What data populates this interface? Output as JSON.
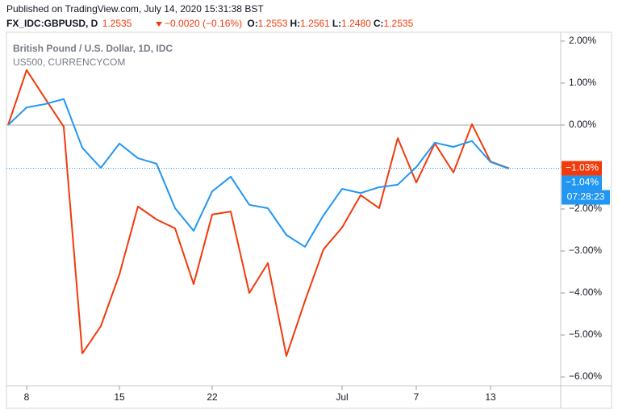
{
  "header": {
    "published": "Published on TradingView.com, July 14, 2020 15:31:38 BST",
    "symbol": "FX_IDC:GBPUSD, D",
    "last": "1.2535",
    "change": "−0.0020 (−0.16%)",
    "ohlc": [
      {
        "key": "O:",
        "value": "1.2553"
      },
      {
        "key": "H:",
        "value": "1.2561"
      },
      {
        "key": "L:",
        "value": "1.2480"
      },
      {
        "key": "C:",
        "value": "1.2535"
      }
    ]
  },
  "chart_data": {
    "type": "line",
    "categories": [
      null,
      "8",
      null,
      null,
      null,
      null,
      "15",
      null,
      null,
      null,
      null,
      "22",
      null,
      null,
      null,
      null,
      null,
      null,
      "Jul",
      null,
      null,
      null,
      "7",
      null,
      null,
      null,
      "13",
      null
    ],
    "series": [
      {
        "name": "British Pound / U.S. Dollar, 1D, IDC",
        "color": "#f23a0c",
        "values": [
          0,
          1.31,
          0.63,
          -0.04,
          -5.44,
          -4.79,
          -3.56,
          -1.94,
          -2.25,
          -2.46,
          -3.79,
          -2.13,
          -2.06,
          -4.0,
          -3.29,
          -5.5,
          -4.19,
          -2.96,
          -2.44,
          -1.67,
          -1.98,
          -0.31,
          -1.37,
          -0.44,
          -1.13,
          0.02,
          -0.87,
          -1.03
        ],
        "value_labels": [
          null,
          null,
          null,
          null,
          null,
          null,
          null,
          null,
          null,
          null,
          null,
          null,
          null,
          null,
          null,
          null,
          null,
          null,
          null,
          null,
          null,
          null,
          null,
          null,
          null,
          null,
          null,
          "−1.03%"
        ]
      },
      {
        "name": "US500, CURRENCYCOM",
        "color": "#2196f3",
        "values": [
          0,
          0.42,
          0.5,
          0.62,
          -0.54,
          -1.02,
          -0.44,
          -0.79,
          -0.92,
          -1.98,
          -2.52,
          -1.58,
          -1.23,
          -1.9,
          -1.98,
          -2.62,
          -2.9,
          -2.15,
          -1.52,
          -1.62,
          -1.48,
          -1.42,
          -1.0,
          -0.42,
          -0.52,
          -0.38,
          -0.88,
          -1.04
        ],
        "value_labels": [
          null,
          null,
          null,
          null,
          null,
          null,
          null,
          null,
          null,
          null,
          null,
          null,
          null,
          null,
          null,
          null,
          null,
          null,
          null,
          null,
          null,
          null,
          null,
          null,
          null,
          null,
          null,
          "−1.04%"
        ]
      }
    ],
    "countdown": "07:28:23",
    "ylim": [
      -6.21,
      2.21
    ],
    "yticks": [
      {
        "value": 2,
        "label": "2.00%"
      },
      {
        "value": 1,
        "label": "1.00%"
      },
      {
        "value": 0,
        "label": "0.00%"
      },
      {
        "value": -1,
        "label": "−1.00%"
      },
      {
        "value": -2,
        "label": "−2.00%"
      },
      {
        "value": -3,
        "label": "−3.00%"
      },
      {
        "value": -4,
        "label": "−4.00%"
      },
      {
        "value": -5,
        "label": "−5.00%"
      },
      {
        "value": -6,
        "label": "−6.00%"
      }
    ]
  }
}
